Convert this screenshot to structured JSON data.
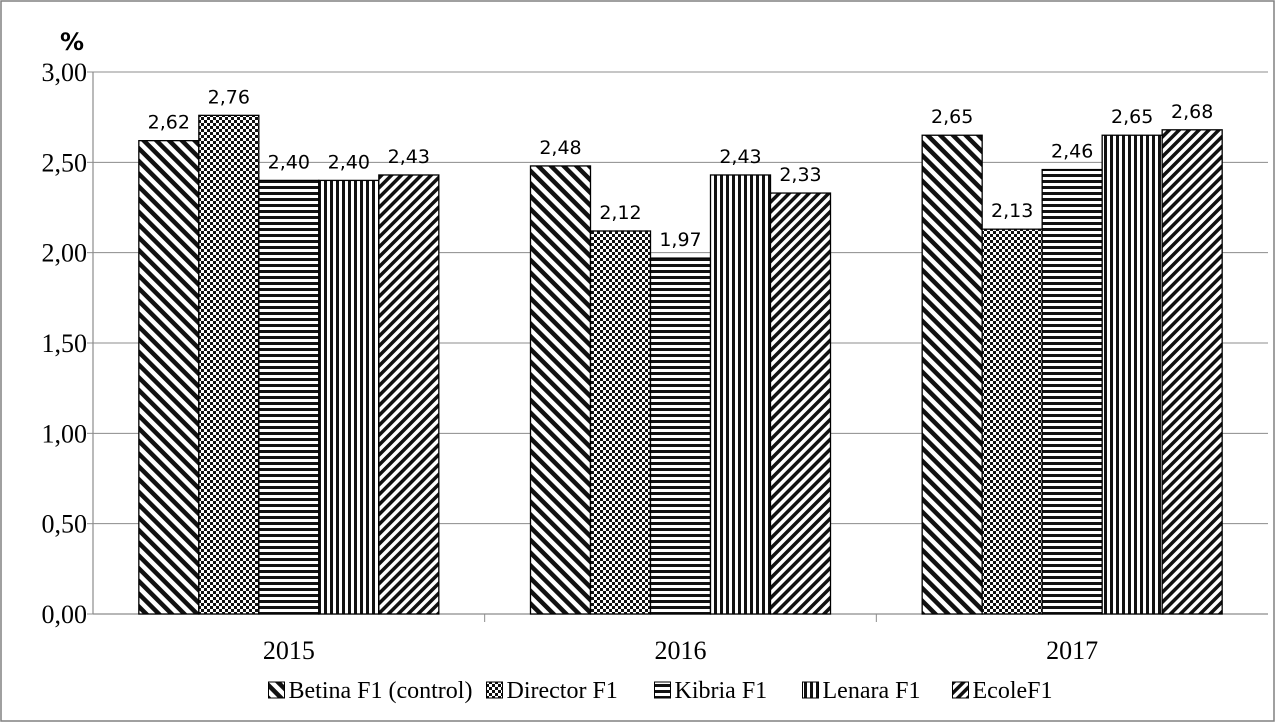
{
  "chart_data": {
    "type": "bar",
    "title": "",
    "unit_label": "%",
    "xlabel": "",
    "ylabel": "",
    "categories": [
      "2015",
      "2016",
      "2017"
    ],
    "ylim": [
      0,
      3
    ],
    "yticks": [
      "0,00",
      "0,50",
      "1,00",
      "1,50",
      "2,00",
      "2,50",
      "3,00"
    ],
    "grid": true,
    "legend_position": "bottom",
    "decimal_separator": ",",
    "series": [
      {
        "name": "Betina F1 (control)",
        "values": [
          2.62,
          2.48,
          2.65
        ],
        "labels": [
          "2,62",
          "2,48",
          "2,65"
        ],
        "pattern": "diag-back"
      },
      {
        "name": "Director F1",
        "values": [
          2.76,
          2.12,
          2.13
        ],
        "labels": [
          "2,76",
          "2,12",
          "2,13"
        ],
        "pattern": "checker"
      },
      {
        "name": "Kibria F1",
        "values": [
          2.4,
          1.97,
          2.46
        ],
        "labels": [
          "2,40",
          "1,97",
          "2,46"
        ],
        "pattern": "horizontal"
      },
      {
        "name": "Lenara F1",
        "values": [
          2.4,
          2.43,
          2.65
        ],
        "labels": [
          "2,40",
          "2,43",
          "2,65"
        ],
        "pattern": "vertical"
      },
      {
        "name": "EcoleF1",
        "values": [
          2.43,
          2.33,
          2.68
        ],
        "labels": [
          "2,43",
          "2,33",
          "2,68"
        ],
        "pattern": "diag-fwd"
      }
    ]
  }
}
